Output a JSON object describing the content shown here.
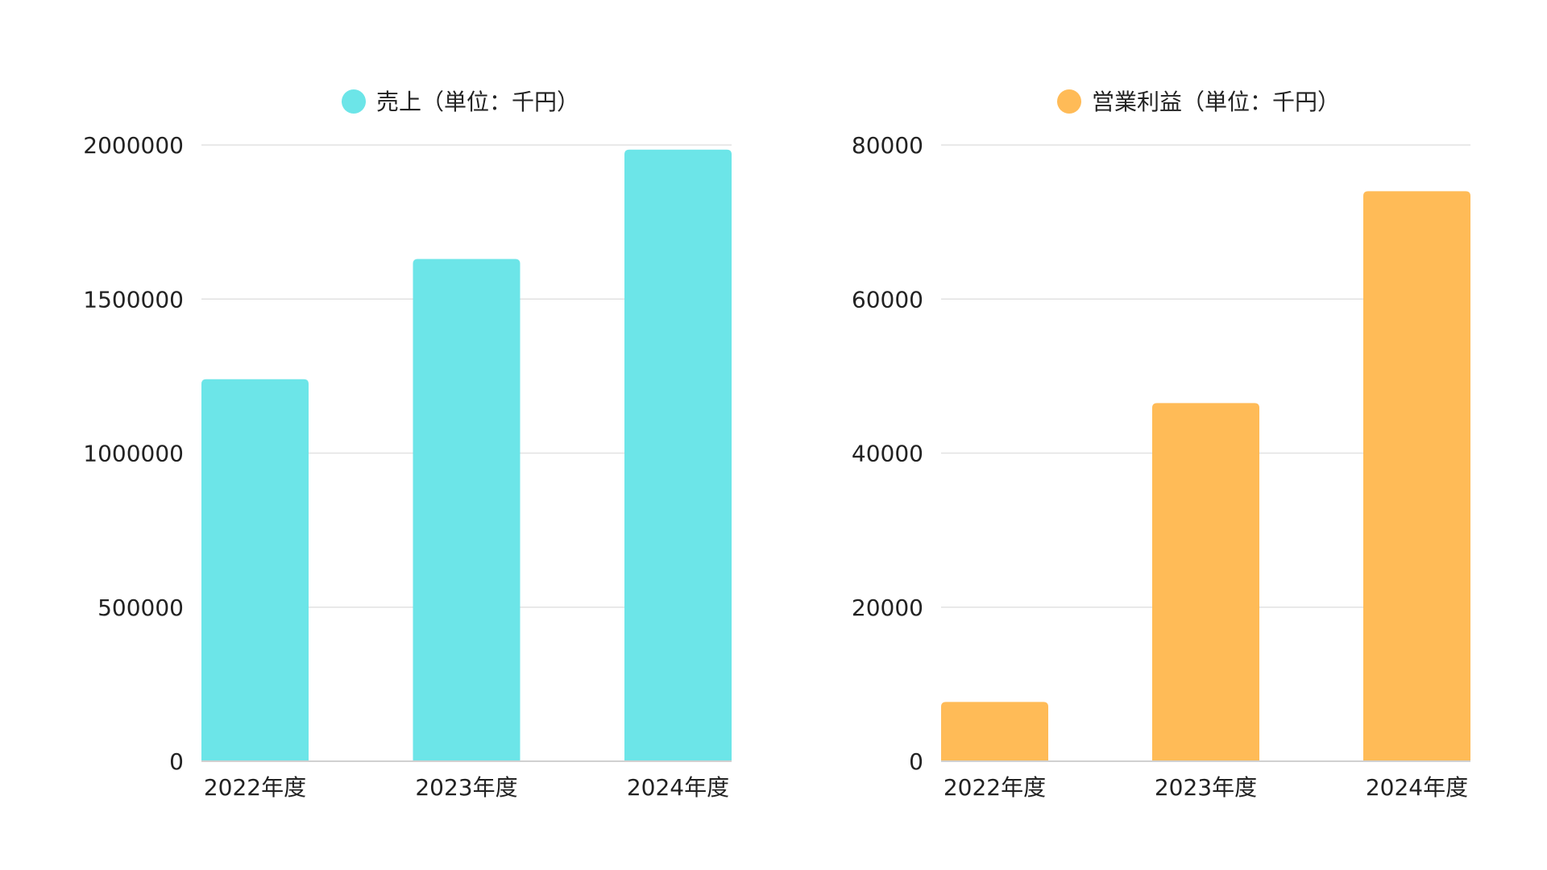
{
  "chart_data": [
    {
      "type": "bar",
      "title": "",
      "legend_position": "top",
      "grid": true,
      "categories": [
        "2022年度",
        "2023年度",
        "2024年度"
      ],
      "ylim": [
        0,
        2000000
      ],
      "yticks": [
        "0",
        "500000",
        "1000000",
        "1500000",
        "2000000"
      ],
      "series": [
        {
          "name": "売上（単位：千円）",
          "color": "#6ce5e8",
          "values": [
            1240000,
            1630000,
            1985000
          ]
        }
      ]
    },
    {
      "type": "bar",
      "title": "",
      "legend_position": "top",
      "grid": true,
      "categories": [
        "2022年度",
        "2023年度",
        "2024年度"
      ],
      "ylim": [
        0,
        80000
      ],
      "yticks": [
        "0",
        "20000",
        "40000",
        "60000",
        "80000"
      ],
      "series": [
        {
          "name": "営業利益（単位：千円）",
          "color": "#ffbb57",
          "values": [
            7700,
            46500,
            74000
          ]
        }
      ]
    }
  ]
}
